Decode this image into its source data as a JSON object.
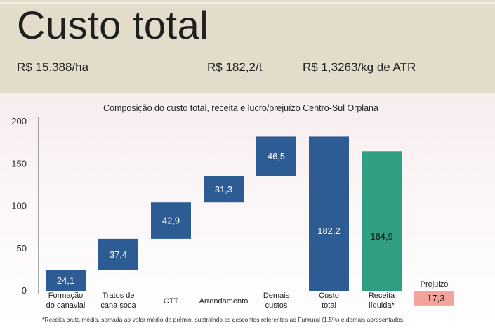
{
  "header": {
    "title": "Custo total",
    "metrics": [
      "R$ 15.388/ha",
      "R$ 182,2/t",
      "R$ 1,3263/kg de ATR"
    ]
  },
  "chart_data": {
    "type": "bar",
    "subtype": "waterfall",
    "title": "Composição do custo total, receita e lucro/prejuízo Centro-Sul Orplana",
    "xlabel": "",
    "ylabel": "",
    "ylim": [
      0,
      200
    ],
    "yticks": [
      0,
      50,
      100,
      150,
      200
    ],
    "grid": false,
    "categories": [
      [
        "Formação",
        "do canavial"
      ],
      [
        "Tratos de",
        "cana soca"
      ],
      [
        "CTT"
      ],
      [
        "Arrendamento"
      ],
      [
        "Demais",
        "custos"
      ],
      [
        "Custo",
        "total"
      ],
      [
        "Receita",
        "líquida*"
      ],
      [
        "Prejuizo"
      ]
    ],
    "bars": [
      {
        "start": 0,
        "end": 24.1,
        "value": 24.1,
        "label": "24,1",
        "color": "#2d5b94"
      },
      {
        "start": 24.1,
        "end": 61.5,
        "value": 37.4,
        "label": "37,4",
        "color": "#2d5b94"
      },
      {
        "start": 61.5,
        "end": 104.4,
        "value": 42.9,
        "label": "42,9",
        "color": "#2d5b94"
      },
      {
        "start": 104.4,
        "end": 135.7,
        "value": 31.3,
        "label": "31,3",
        "color": "#2d5b94"
      },
      {
        "start": 135.7,
        "end": 182.2,
        "value": 46.5,
        "label": "46,5",
        "color": "#2d5b94"
      },
      {
        "start": 0,
        "end": 182.2,
        "value": 182.2,
        "label": "182,2",
        "color": "#2d5b94"
      },
      {
        "start": 0,
        "end": 164.9,
        "value": 164.9,
        "label": "164,9",
        "color": "#2f9e81"
      },
      {
        "start": 0,
        "end": -17.3,
        "value": -17.3,
        "label": "-17,3",
        "color": "#f3a29c"
      }
    ]
  },
  "footnote": "*Receita bruta média, somada ao valor médio de prêmio, subtraindo os descontos referentes ao Funrural (1,5%) e demais apresentados."
}
